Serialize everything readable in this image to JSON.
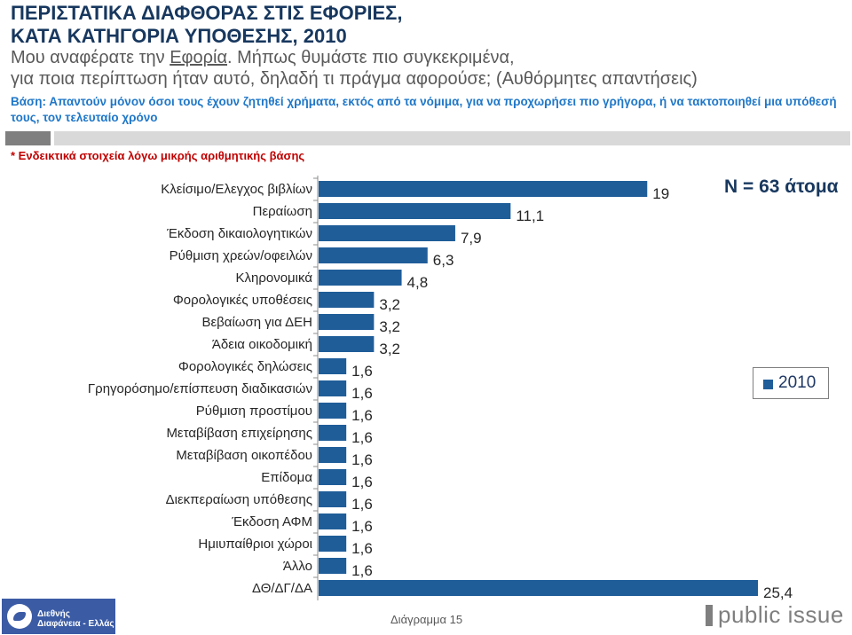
{
  "header": {
    "title_line1": "ΠΕΡΙΣΤΑΤΙΚΑ ΔΙΑΦΘΟΡΑΣ ΣΤΙΣ ΕΦΟΡΙΕΣ,",
    "title_line2": "ΚΑΤΑ ΚΑΤΗΓΟΡΙΑ ΥΠΟΘΕΣΗΣ, 2010",
    "question_pre": "Μου αναφέρατε την ",
    "question_link": "Εφορία",
    "question_post": ". Μήπως θυμάστε πιο συγκεκριμένα,",
    "question_line2": "για ποια περίπτωση ήταν αυτό, δηλαδή τι πράγμα αφορούσε; (Αυθόρμητες απαντήσεις)",
    "base_text": "Βάση: Απαντούν μόνον όσοι τους έχουν ζητηθεί χρήματα, εκτός από τα νόμιμα, για να προχωρήσει πιο γρήγορα, ή να τακτοποιηθεί μια υπόθεσή τους, τον τελευταίο χρόνο",
    "footnote": "* Ενδεικτικά στοιχεία λόγω μικρής αριθμητικής βάσης",
    "n_label": "N = 63 άτομα"
  },
  "legend": {
    "label": "2010",
    "color": "#1f5d99"
  },
  "footer": {
    "caption": "Διάγραμμα 15",
    "left_logo_text": "Διεθνής Διαφάνεια - Ελλάς",
    "right_logo_text": "public issue"
  },
  "chart_data": {
    "type": "bar",
    "orientation": "horizontal",
    "categories": [
      "Κλείσιμο/Ελεγχος βιβλίων",
      "Περαίωση",
      "Έκδοση δικαιολογητικών",
      "Ρύθμιση χρεών/οφειλών",
      "Κληρονομικά",
      "Φορολογικές υποθέσεις",
      "Βεβαίωση για ΔΕΗ",
      "Άδεια οικοδομική",
      "Φορολογικές δηλώσεις",
      "Γρηγορόσημο/επίσπευση διαδικασιών",
      "Ρύθμιση προστίμου",
      "Μεταβίβαση επιχείρησης",
      "Μεταβίβαση οικοπέδου",
      "Επίδομα",
      "Διεκπεραίωση υπόθεσης",
      "Έκδοση ΑΦΜ",
      "Ημιυπαίθριοι χώροι",
      "Άλλο",
      "ΔΘ/ΔΓ/ΔΑ"
    ],
    "series": [
      {
        "name": "2010",
        "values": [
          19,
          11.1,
          7.9,
          6.3,
          4.8,
          3.2,
          3.2,
          3.2,
          1.6,
          1.6,
          1.6,
          1.6,
          1.6,
          1.6,
          1.6,
          1.6,
          1.6,
          1.6,
          25.4
        ],
        "value_labels": [
          "19",
          "11,1",
          "7,9",
          "6,3",
          "4,8",
          "3,2",
          "3,2",
          "3,2",
          "1,6",
          "1,6",
          "1,6",
          "1,6",
          "1,6",
          "1,6",
          "1,6",
          "1,6",
          "1,6",
          "1,6",
          "25,4"
        ]
      }
    ],
    "xlim": [
      0,
      25.4
    ],
    "color": "#1f5d99",
    "grid": false,
    "legend_position": "right"
  }
}
